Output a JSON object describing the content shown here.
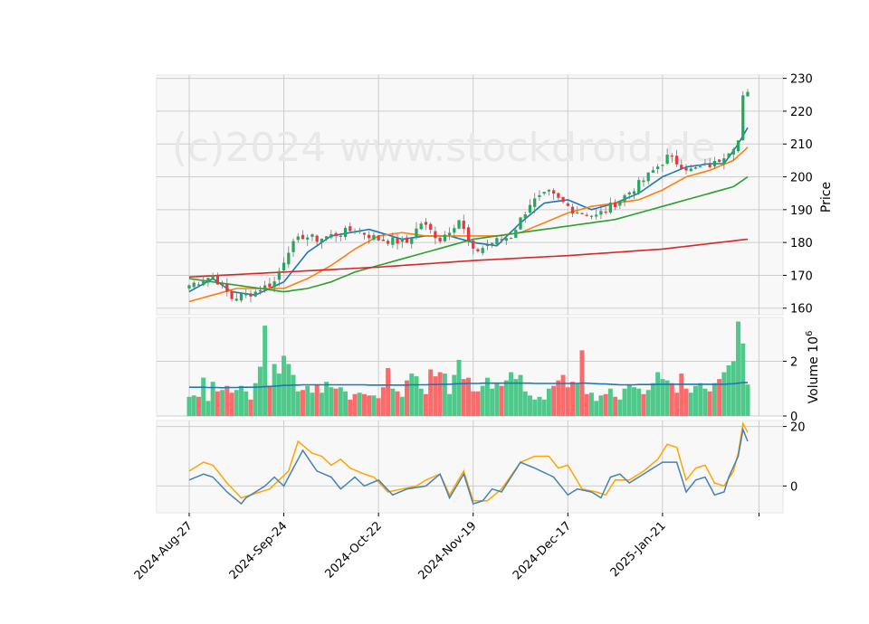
{
  "watermark": "(c)2024 www.stockdroid.de",
  "colors": {
    "up": "#26a65b",
    "down": "#e8373e",
    "vol_up": "#4ec98a",
    "vol_down": "#fb6b6b",
    "ma_fast": "#1f77b4",
    "ma_mid": "#ff7f0e",
    "ma_slow": "#2ca02c",
    "ma_long": "#d62728",
    "osc_a": "#4682b4",
    "osc_b": "#ffa500",
    "vol_ma": "#1f77b4",
    "panel_bg": "#f8f8f8",
    "grid": "#cccccc"
  },
  "chart_data": {
    "type": "candlestick",
    "x_tick_labels": [
      "2024-Aug-27",
      "2024-Sep-24",
      "2024-Oct-22",
      "2024-Nov-19",
      "2024-Dec-17",
      "2025-Jan-21"
    ],
    "x_tick_index": [
      0,
      20,
      40,
      60,
      80,
      100
    ],
    "n_bars": 119,
    "price_panel": {
      "ylabel": "Price",
      "ylim": [
        158,
        231
      ],
      "yticks": [
        160,
        170,
        180,
        190,
        200,
        210,
        220,
        230
      ],
      "anchors": [
        [
          0,
          167
        ],
        [
          5,
          170
        ],
        [
          9,
          163
        ],
        [
          14,
          165
        ],
        [
          18,
          168
        ],
        [
          21,
          178
        ],
        [
          24,
          182
        ],
        [
          27,
          181
        ],
        [
          35,
          184
        ],
        [
          40,
          181
        ],
        [
          46,
          180
        ],
        [
          49,
          186
        ],
        [
          53,
          181
        ],
        [
          57,
          187
        ],
        [
          60,
          177
        ],
        [
          64,
          180
        ],
        [
          68,
          182
        ],
        [
          72,
          192
        ],
        [
          76,
          195
        ],
        [
          81,
          190
        ],
        [
          86,
          188
        ],
        [
          91,
          193
        ],
        [
          96,
          199
        ],
        [
          101,
          206
        ],
        [
          106,
          202
        ],
        [
          111,
          204
        ],
        [
          116,
          211
        ],
        [
          117,
          224
        ],
        [
          118,
          225
        ]
      ],
      "ma_series": [
        {
          "name": "",
          "color_key": "ma_fast",
          "points": [
            [
              0,
              165
            ],
            [
              5,
              169
            ],
            [
              9,
              165
            ],
            [
              14,
              164
            ],
            [
              20,
              168
            ],
            [
              25,
              177
            ],
            [
              30,
              182
            ],
            [
              38,
              184
            ],
            [
              45,
              181
            ],
            [
              50,
              182
            ],
            [
              55,
              182
            ],
            [
              60,
              180
            ],
            [
              65,
              179
            ],
            [
              70,
              186
            ],
            [
              75,
              192
            ],
            [
              80,
              193
            ],
            [
              85,
              190
            ],
            [
              90,
              192
            ],
            [
              95,
              195
            ],
            [
              100,
              200
            ],
            [
              105,
              203
            ],
            [
              110,
              204
            ],
            [
              113,
              204
            ],
            [
              116,
              210
            ],
            [
              118,
              215
            ]
          ]
        },
        {
          "name": "",
          "color_key": "ma_mid",
          "points": [
            [
              0,
              162
            ],
            [
              5,
              164
            ],
            [
              10,
              166
            ],
            [
              15,
              166
            ],
            [
              20,
              166
            ],
            [
              25,
              169
            ],
            [
              30,
              173
            ],
            [
              35,
              178
            ],
            [
              40,
              182
            ],
            [
              45,
              183
            ],
            [
              50,
              182
            ],
            [
              55,
              182
            ],
            [
              60,
              182
            ],
            [
              65,
              182
            ],
            [
              70,
              183
            ],
            [
              75,
              186
            ],
            [
              80,
              189
            ],
            [
              85,
              191
            ],
            [
              90,
              192
            ],
            [
              95,
              193
            ],
            [
              100,
              196
            ],
            [
              105,
              200
            ],
            [
              110,
              202
            ],
            [
              115,
              205
            ],
            [
              118,
              209
            ]
          ]
        },
        {
          "name": "",
          "color_key": "ma_slow",
          "points": [
            [
              0,
              169
            ],
            [
              5,
              168
            ],
            [
              10,
              167
            ],
            [
              15,
              166
            ],
            [
              20,
              165
            ],
            [
              25,
              166
            ],
            [
              30,
              168
            ],
            [
              35,
              171
            ],
            [
              40,
              173
            ],
            [
              45,
              175
            ],
            [
              50,
              177
            ],
            [
              55,
              179
            ],
            [
              60,
              181
            ],
            [
              65,
              182
            ],
            [
              70,
              183
            ],
            [
              75,
              184
            ],
            [
              80,
              185
            ],
            [
              85,
              186
            ],
            [
              90,
              187
            ],
            [
              95,
              189
            ],
            [
              100,
              191
            ],
            [
              105,
              193
            ],
            [
              110,
              195
            ],
            [
              115,
              197
            ],
            [
              118,
              200
            ]
          ]
        },
        {
          "name": "",
          "color_key": "ma_long",
          "points": [
            [
              0,
              169.5
            ],
            [
              20,
              171
            ],
            [
              40,
              172.5
            ],
            [
              60,
              174.5
            ],
            [
              80,
              176
            ],
            [
              100,
              178
            ],
            [
              118,
              181
            ]
          ]
        }
      ]
    },
    "volume_panel": {
      "ylabel": "Volume  10^6",
      "ylim": [
        0,
        3.6
      ],
      "yticks": [
        0,
        2
      ],
      "values": [
        0.7,
        0.75,
        0.7,
        1.4,
        0.55,
        1.25,
        0.9,
        0.95,
        1.1,
        0.85,
        0.95,
        1.1,
        0.9,
        0.6,
        1.2,
        1.8,
        3.3,
        1.1,
        1.9,
        1.55,
        2.2,
        1.9,
        1.5,
        0.9,
        0.95,
        1.1,
        0.85,
        1.15,
        0.85,
        1.25,
        1.05,
        1.0,
        1.05,
        0.9,
        0.6,
        0.8,
        0.85,
        0.8,
        0.75,
        0.75,
        0.65,
        1.05,
        1.75,
        1.0,
        0.9,
        0.7,
        1.3,
        1.55,
        1.45,
        1.0,
        0.8,
        1.7,
        1.45,
        1.6,
        1.55,
        0.8,
        1.5,
        2.05,
        1.35,
        1.4,
        0.9,
        0.9,
        1.1,
        1.4,
        1.0,
        1.2,
        1.1,
        1.3,
        1.6,
        1.35,
        1.5,
        0.9,
        0.75,
        0.6,
        0.7,
        0.6,
        1.0,
        1.1,
        1.3,
        1.5,
        1.05,
        1.25,
        1.2,
        2.4,
        0.8,
        0.85,
        0.55,
        0.75,
        0.8,
        1.0,
        0.7,
        0.6,
        1.0,
        1.15,
        1.05,
        1.0,
        0.8,
        0.95,
        1.2,
        1.6,
        1.35,
        1.3,
        1.2,
        0.85,
        1.55,
        1.0,
        0.85,
        1.1,
        1.2,
        1.0,
        0.9,
        1.2,
        1.35,
        1.6,
        1.85,
        2.0,
        3.45,
        2.65,
        1.15
      ],
      "avg": [
        1.05,
        1.05,
        1.05,
        1.05,
        1.04,
        1.04,
        1.04,
        1.03,
        1.04,
        1.04,
        1.04,
        1.05,
        1.05,
        1.05,
        1.05,
        1.06,
        1.07,
        1.08,
        1.09,
        1.1,
        1.12,
        1.12,
        1.13,
        1.13,
        1.14,
        1.14,
        1.14,
        1.14,
        1.14,
        1.14,
        1.14,
        1.14,
        1.14,
        1.14,
        1.14,
        1.14,
        1.14,
        1.14,
        1.13,
        1.13,
        1.13,
        1.13,
        1.13,
        1.13,
        1.13,
        1.13,
        1.13,
        1.14,
        1.14,
        1.14,
        1.14,
        1.15,
        1.15,
        1.16,
        1.16,
        1.16,
        1.17,
        1.18,
        1.18,
        1.19,
        1.19,
        1.19,
        1.2,
        1.2,
        1.2,
        1.2,
        1.2,
        1.2,
        1.2,
        1.2,
        1.2,
        1.2,
        1.2,
        1.19,
        1.19,
        1.19,
        1.19,
        1.19,
        1.19,
        1.19,
        1.19,
        1.19,
        1.19,
        1.2,
        1.2,
        1.19,
        1.18,
        1.17,
        1.17,
        1.16,
        1.15,
        1.14,
        1.14,
        1.14,
        1.14,
        1.15,
        1.15,
        1.15,
        1.15,
        1.16,
        1.16,
        1.16,
        1.16,
        1.16,
        1.16,
        1.16,
        1.16,
        1.16,
        1.16,
        1.16,
        1.16,
        1.16,
        1.16,
        1.16,
        1.17,
        1.18,
        1.2,
        1.22,
        1.22
      ]
    },
    "oscillator_panel": {
      "ylim": [
        -9,
        22
      ],
      "yticks": [
        0,
        20
      ],
      "series_a": [
        [
          0,
          2
        ],
        [
          3,
          4
        ],
        [
          5,
          3
        ],
        [
          8,
          -2
        ],
        [
          11,
          -6
        ],
        [
          12,
          -4
        ],
        [
          14,
          -2
        ],
        [
          16,
          0
        ],
        [
          18,
          3
        ],
        [
          20,
          0
        ],
        [
          22,
          6
        ],
        [
          24,
          12
        ],
        [
          27,
          5
        ],
        [
          30,
          3
        ],
        [
          32,
          -1
        ],
        [
          35,
          3
        ],
        [
          37,
          0
        ],
        [
          40,
          2
        ],
        [
          43,
          -3
        ],
        [
          46,
          -1
        ],
        [
          50,
          0
        ],
        [
          53,
          4
        ],
        [
          55,
          -4
        ],
        [
          58,
          4
        ],
        [
          60,
          -6
        ],
        [
          62,
          -5
        ],
        [
          64,
          -1
        ],
        [
          66,
          -2
        ],
        [
          70,
          8
        ],
        [
          73,
          6
        ],
        [
          77,
          3
        ],
        [
          80,
          -3
        ],
        [
          82,
          -1
        ],
        [
          85,
          -2
        ],
        [
          87,
          -4
        ],
        [
          89,
          3
        ],
        [
          91,
          4
        ],
        [
          93,
          1
        ],
        [
          96,
          4
        ],
        [
          100,
          8
        ],
        [
          103,
          8
        ],
        [
          105,
          -2
        ],
        [
          107,
          2
        ],
        [
          109,
          3
        ],
        [
          111,
          -3
        ],
        [
          113,
          -2
        ],
        [
          114,
          3
        ],
        [
          116,
          10
        ],
        [
          117,
          19
        ],
        [
          118,
          15
        ]
      ],
      "series_b": [
        [
          0,
          5
        ],
        [
          3,
          8
        ],
        [
          5,
          7
        ],
        [
          8,
          1
        ],
        [
          11,
          -4
        ],
        [
          13,
          -3
        ],
        [
          15,
          -2
        ],
        [
          17,
          -1
        ],
        [
          19,
          2
        ],
        [
          21,
          5
        ],
        [
          23,
          15
        ],
        [
          26,
          11
        ],
        [
          28,
          10
        ],
        [
          30,
          7
        ],
        [
          32,
          9
        ],
        [
          34,
          6
        ],
        [
          37,
          4
        ],
        [
          39,
          3
        ],
        [
          42,
          -2
        ],
        [
          45,
          -1
        ],
        [
          48,
          0
        ],
        [
          50,
          2
        ],
        [
          53,
          4
        ],
        [
          55,
          -3
        ],
        [
          58,
          5
        ],
        [
          60,
          -5
        ],
        [
          63,
          -5
        ],
        [
          66,
          -1
        ],
        [
          70,
          8
        ],
        [
          73,
          10
        ],
        [
          76,
          10
        ],
        [
          78,
          6
        ],
        [
          80,
          7
        ],
        [
          83,
          -1
        ],
        [
          86,
          -2
        ],
        [
          88,
          -3
        ],
        [
          90,
          2
        ],
        [
          93,
          2
        ],
        [
          96,
          5
        ],
        [
          99,
          9
        ],
        [
          101,
          14
        ],
        [
          103,
          13
        ],
        [
          105,
          2
        ],
        [
          107,
          6
        ],
        [
          109,
          7
        ],
        [
          111,
          1
        ],
        [
          113,
          0
        ],
        [
          115,
          5
        ],
        [
          116,
          11
        ],
        [
          117,
          21
        ],
        [
          118,
          18
        ]
      ]
    }
  }
}
